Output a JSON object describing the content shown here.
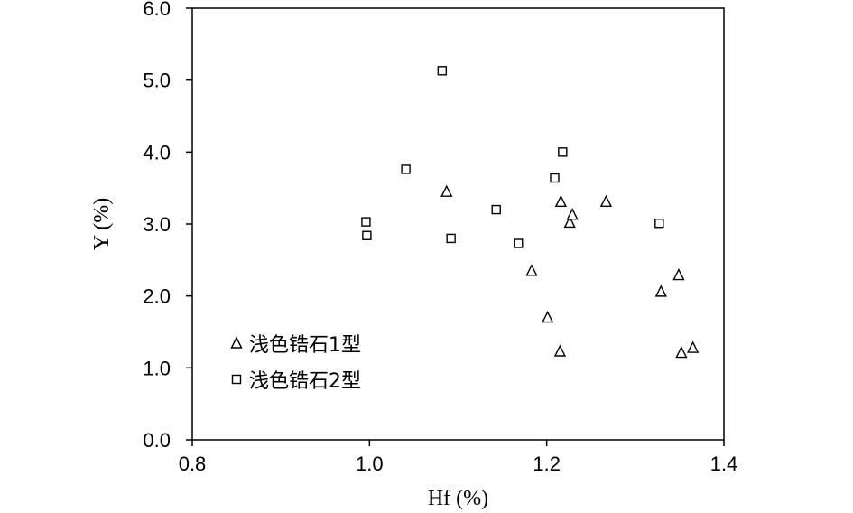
{
  "chart_data": {
    "type": "scatter",
    "xlabel": "Hf (%)",
    "ylabel": "Y (%)",
    "xlim": [
      0.8,
      1.4
    ],
    "ylim": [
      0.0,
      6.0
    ],
    "x_ticks": [
      "0.8",
      "1.0",
      "1.2",
      "1.4"
    ],
    "y_ticks": [
      "0.0",
      "1.0",
      "2.0",
      "3.0",
      "4.0",
      "5.0",
      "6.0"
    ],
    "grid": false,
    "legend_position": "bottom-left",
    "series": [
      {
        "name": "浅色锆石1型",
        "marker": "triangle",
        "points": [
          {
            "x": 1.087,
            "y": 3.45
          },
          {
            "x": 1.183,
            "y": 2.35
          },
          {
            "x": 1.201,
            "y": 1.7
          },
          {
            "x": 1.215,
            "y": 1.23
          },
          {
            "x": 1.216,
            "y": 3.31
          },
          {
            "x": 1.226,
            "y": 3.02
          },
          {
            "x": 1.229,
            "y": 3.13
          },
          {
            "x": 1.267,
            "y": 3.31
          },
          {
            "x": 1.329,
            "y": 2.06
          },
          {
            "x": 1.349,
            "y": 2.29
          },
          {
            "x": 1.352,
            "y": 1.21
          },
          {
            "x": 1.365,
            "y": 1.28
          }
        ]
      },
      {
        "name": "浅色锆石2型",
        "marker": "square",
        "points": [
          {
            "x": 0.996,
            "y": 3.03
          },
          {
            "x": 0.997,
            "y": 2.84
          },
          {
            "x": 1.041,
            "y": 3.76
          },
          {
            "x": 1.082,
            "y": 5.13
          },
          {
            "x": 1.092,
            "y": 2.8
          },
          {
            "x": 1.143,
            "y": 3.2
          },
          {
            "x": 1.168,
            "y": 2.73
          },
          {
            "x": 1.209,
            "y": 3.64
          },
          {
            "x": 1.218,
            "y": 4.0
          },
          {
            "x": 1.327,
            "y": 3.01
          }
        ]
      }
    ]
  }
}
